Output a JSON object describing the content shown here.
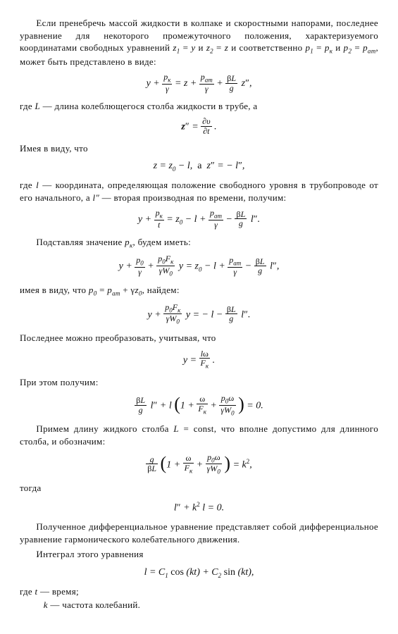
{
  "doc": {
    "p1": "Если пренебречь массой жидкости в колпаке и скоростными напорами, последнее уравнение для некоторого промежуточного положения, характеризуемого координатами свободных уравнений z₁ = y и z₂ = z и соответственно p₁ = pₖ и p₂ = pₐₘ, может быть представлено в виде:",
    "f1": "y + pₖ/γ = z + pₐₘ/γ + (βL/g) z″,",
    "p2": "где L — длина колеблющегося столба жидкости в трубе, а",
    "f2": "z″ = ∂υ/∂t .",
    "p3": "Имея в виду, что",
    "f3": "z = z₀ − l,  а  z″ = − l″,",
    "p4": "где l — координата, определяющая положение свободного уровня в трубопроводе от его начального, а l″ — вторая производная по времени, получим:",
    "f4": "y + pₖ/t = z₀ − l + pₐₘ/γ − (βL/g) l″.",
    "p5": "Подставляя значение pₖ, будем иметь:",
    "f5": "y + p₀/γ + (p₀Fₖ)/(γW₀) y = z₀ − l + pₐₘ/γ − (βL/g) l″,",
    "p6": "имея в виду, что p₀ = pₐₘ + γz₀, найдем:",
    "f6": "y + (p₀Fₖ)/(γW₀) y = − l − (βL/g) l″.",
    "p7": "Последнее можно преобразовать, учитывая, что",
    "f7": "y = lω / Fₖ .",
    "p8": "При этом получим:",
    "f8": "(βL/g) l″ + l (1 + ω/Fₖ + p₀ω/(γW₀)) = 0.",
    "p9": "Примем длину жидкого столба L = const, что вполне допустимо для длинного столба, и обозначим:",
    "f9": "(g/βL) (1 + ω/Fₖ + p₀ω/(γW₀)) = k²,",
    "tword": "тогда",
    "f10": "l″ + k² l = 0.",
    "p10": "Полученное дифференциальное уравнение представляет собой дифференциальное уравнение гармонического колебательного движения.",
    "p10b": "Интеграл этого уравнения",
    "f11": "l = C₁ cos (kt) + C₂ sin (kt),",
    "p11a": "где t — время;",
    "p11b": "k — частота колебаний."
  }
}
